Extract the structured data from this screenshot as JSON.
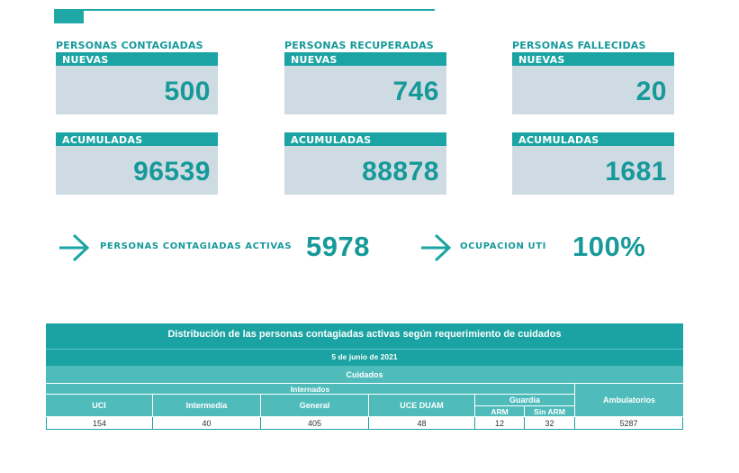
{
  "cards": {
    "contagiadas": {
      "title": "PERSONAS CONTAGIADAS",
      "nuevas_label": "NUEVAS",
      "nuevas": "500",
      "acumuladas_label": "ACUMULADAS",
      "acumuladas": "96539"
    },
    "recuperadas": {
      "title": "PERSONAS RECUPERADAS",
      "nuevas_label": "NUEVAS",
      "nuevas": "746",
      "acumuladas_label": "ACUMULADAS",
      "acumuladas": "88878"
    },
    "fallecidas": {
      "title": "PERSONAS FALLECIDAS",
      "nuevas_label": "NUEVAS",
      "nuevas": "20",
      "acumuladas_label": "ACUMULADAS",
      "acumuladas": "1681"
    }
  },
  "activas": {
    "label": "PERSONAS CONTAGIADAS ACTIVAS",
    "value": "5978"
  },
  "uti": {
    "label": "OCUPACION UTI",
    "value": "100%"
  },
  "table": {
    "title": "Distribución de las personas contagiadas activas según requerimiento de cuidados",
    "date": "5 de junio de 2021",
    "cuidados": "Cuidados",
    "internados": "Internados",
    "guardia": "Guardia",
    "ambulatorios": "Ambulatorios",
    "cols": {
      "uci": "UCI",
      "intermedia": "Intermedia",
      "general": "General",
      "uce": "UCE DUAM",
      "arm": "ARM",
      "sin_arm": "Sin ARM"
    },
    "values": {
      "uci": "154",
      "intermedia": "40",
      "general": "405",
      "uce": "48",
      "arm": "12",
      "sin_arm": "32",
      "ambulatorios": "5287"
    }
  },
  "colors": {
    "teal": "#1ca4a4",
    "light_teal": "#4fbcbb",
    "box_bg": "#cfdbe3"
  }
}
